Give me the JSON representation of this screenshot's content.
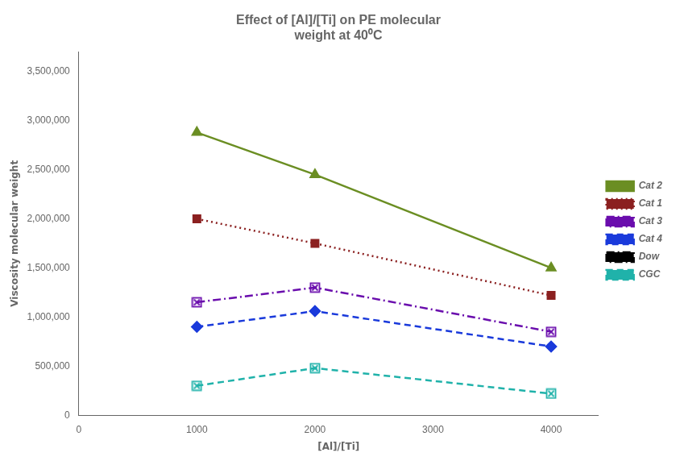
{
  "chart_data": {
    "type": "line",
    "title": [
      "Effect of [Al]/[Ti] on PE molecular",
      "weight at 40⁰C"
    ],
    "xlabel": "[Al]/[Ti]",
    "ylabel": "Viscosity molecular weight",
    "x": [
      1000,
      2000,
      4000
    ],
    "xlim": [
      0,
      4400
    ],
    "xticks": [
      0,
      1000,
      2000,
      3000,
      4000
    ],
    "ylim": [
      0,
      3700000
    ],
    "yticks": [
      0,
      {
        "value": 500000,
        "label": "500,000"
      },
      {
        "value": 1000000,
        "label": "1,000,000"
      },
      {
        "value": 1500000,
        "label": "1,500,000"
      },
      {
        "value": 2000000,
        "label": "2,000,000"
      },
      {
        "value": 2500000,
        "label": "2,500,000"
      },
      {
        "value": 3000000,
        "label": "3,000,000"
      },
      {
        "value": 3500000,
        "label": "3,500,000"
      }
    ],
    "grid": false,
    "legend": "right",
    "series": [
      {
        "name": "Cat 2",
        "values": [
          2880000,
          2450000,
          1500000
        ],
        "color": "#6b8e23",
        "marker": "triangle",
        "line_style": "solid"
      },
      {
        "name": "Cat 1",
        "values": [
          2000000,
          1750000,
          1220000
        ],
        "color": "#8b2020",
        "marker": "square",
        "line_style": "dotted"
      },
      {
        "name": "Cat 3",
        "values": [
          1150000,
          1300000,
          850000
        ],
        "color": "#6a0dad",
        "marker": "x_box",
        "line_style": "dashdot"
      },
      {
        "name": "Cat 4",
        "values": [
          900000,
          1060000,
          700000
        ],
        "color": "#1a3adb",
        "marker": "diamond",
        "line_style": "dashed"
      },
      {
        "name": "Dow",
        "values": [
          null,
          null,
          null
        ],
        "color": "#000000",
        "marker": "none",
        "line_style": "dashdot"
      },
      {
        "name": "CGC",
        "values": [
          300000,
          480000,
          220000
        ],
        "color": "#20b2aa",
        "marker": "x_box",
        "line_style": "dashed"
      }
    ]
  }
}
